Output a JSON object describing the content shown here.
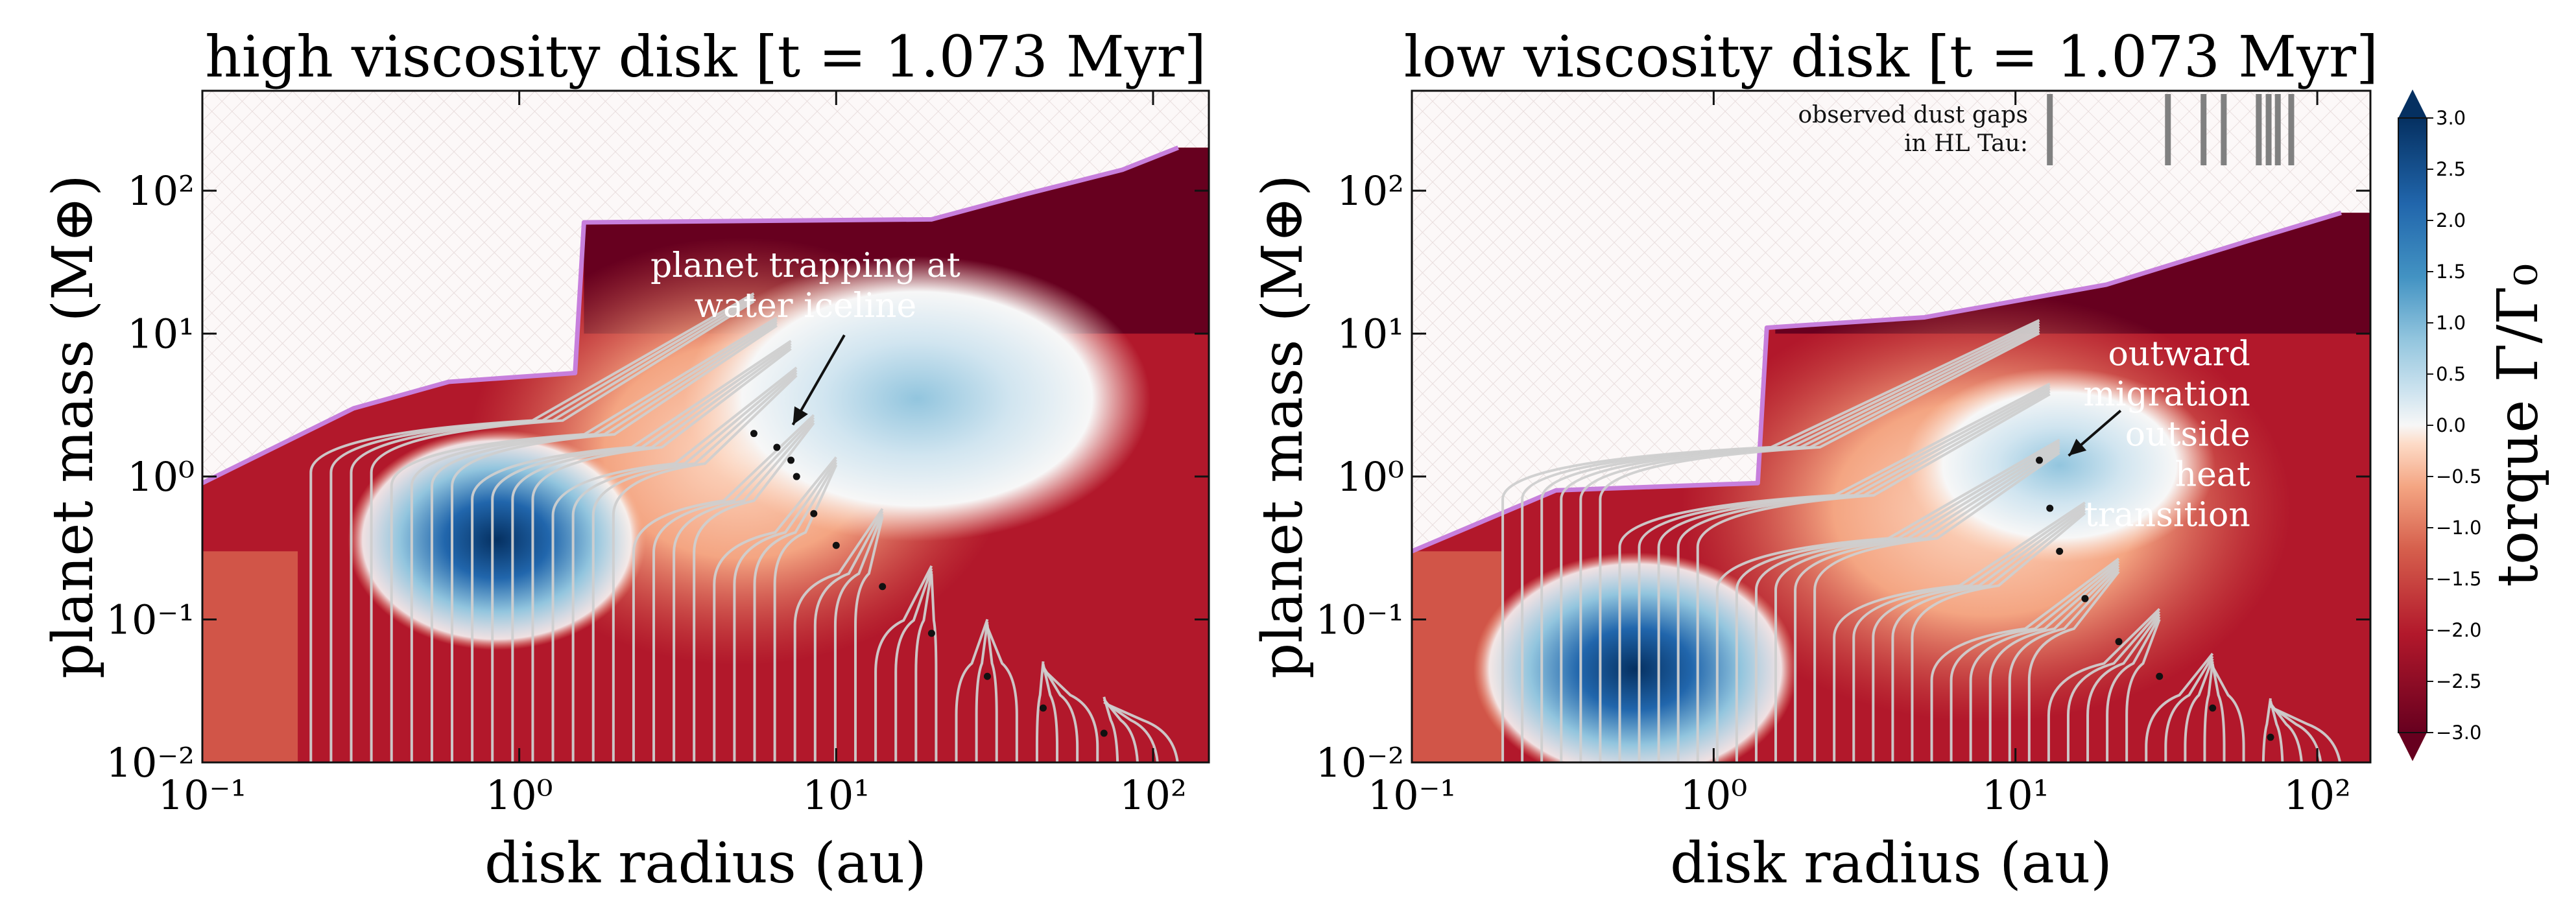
{
  "colors": {
    "deep_red": "#67001f",
    "red": "#b2182b",
    "light_red": "#d6604d",
    "peach": "#f4a582",
    "pale": "#fddbc7",
    "white": "#f7f7f7",
    "pale_blue": "#d1e5f0",
    "light_blue": "#92c5de",
    "blue": "#4393c3",
    "dark_blue": "#2166ac",
    "deep_blue": "#053061",
    "boundary": "#c77fdc",
    "tracks": "#cfcfcf",
    "dots": "#111111"
  },
  "chart_data": [
    {
      "type": "contour",
      "title": "high viscosity disk [t = 1.073 Myr]",
      "xlabel": "disk radius (au)",
      "ylabel": "planet mass (M⊕)",
      "xscale": "log",
      "yscale": "log",
      "xlim": [
        0.1,
        150
      ],
      "ylim": [
        0.01,
        500
      ],
      "x_ticks": [
        {
          "value": 0.1,
          "label": "10⁻¹"
        },
        {
          "value": 1,
          "label": "10⁰"
        },
        {
          "value": 10,
          "label": "10¹"
        },
        {
          "value": 100,
          "label": "10²"
        }
      ],
      "y_ticks": [
        {
          "value": 0.01,
          "label": "10⁻²"
        },
        {
          "value": 0.1,
          "label": "10⁻¹"
        },
        {
          "value": 1,
          "label": "10⁰"
        },
        {
          "value": 10,
          "label": "10¹"
        },
        {
          "value": 100,
          "label": "10²"
        }
      ],
      "annotations": [
        {
          "lines": [
            "planet trapping at",
            "water iceline"
          ],
          "x": 8.0,
          "y": 25,
          "arrow_to": [
            7.3,
            2.3
          ]
        }
      ],
      "boundary": [
        [
          0.1,
          0.9
        ],
        [
          0.3,
          3.0
        ],
        [
          0.6,
          4.6
        ],
        [
          1.5,
          5.3
        ],
        [
          1.6,
          60
        ],
        [
          20,
          63
        ],
        [
          40,
          95
        ],
        [
          80,
          140
        ],
        [
          120,
          200
        ]
      ],
      "blue_regions": [
        {
          "x": 0.8,
          "y": 0.36,
          "level": -2.5
        },
        {
          "x": 20,
          "y": 4.2,
          "level": 0.5
        }
      ],
      "tracks": {
        "count": 44,
        "r0_range": [
          0.22,
          120
        ],
        "end_points": [
          [
            5.5,
            2.0
          ],
          [
            6.5,
            1.6
          ],
          [
            7.2,
            1.3
          ],
          [
            7.5,
            1.0
          ],
          [
            8.5,
            0.55
          ],
          [
            10,
            0.33
          ],
          [
            14,
            0.17
          ],
          [
            20,
            0.08
          ],
          [
            30,
            0.04
          ],
          [
            45,
            0.024
          ],
          [
            70,
            0.016
          ]
        ]
      }
    },
    {
      "type": "contour",
      "title": "low viscosity disk [t = 1.073 Myr]",
      "xlabel": "disk radius (au)",
      "ylabel": "planet mass (M⊕)",
      "xscale": "log",
      "yscale": "log",
      "xlim": [
        0.1,
        150
      ],
      "ylim": [
        0.01,
        500
      ],
      "x_ticks": [
        {
          "value": 0.1,
          "label": "10⁻¹"
        },
        {
          "value": 1,
          "label": "10⁰"
        },
        {
          "value": 10,
          "label": "10¹"
        },
        {
          "value": 100,
          "label": "10²"
        }
      ],
      "y_ticks": [
        {
          "value": 0.01,
          "label": "10⁻²"
        },
        {
          "value": 0.1,
          "label": "10⁻¹"
        },
        {
          "value": 1,
          "label": "10⁰"
        },
        {
          "value": 10,
          "label": "10¹"
        },
        {
          "value": 100,
          "label": "10²"
        }
      ],
      "annotations": [
        {
          "lines": [
            "outward",
            "migration",
            "outside",
            "heat",
            "transition"
          ],
          "x": 60,
          "y": 6,
          "arrow_to": [
            15,
            1.4
          ]
        },
        {
          "lines": [
            "observed dust gaps",
            "in HL Tau:"
          ],
          "x": 11,
          "y": 300
        }
      ],
      "hl_tau_gaps_au": [
        13,
        32,
        42,
        49,
        64,
        69,
        74,
        82
      ],
      "boundary": [
        [
          0.1,
          0.3
        ],
        [
          0.3,
          0.8
        ],
        [
          1.4,
          0.9
        ],
        [
          1.5,
          11
        ],
        [
          5,
          13
        ],
        [
          20,
          22
        ],
        [
          60,
          45
        ],
        [
          120,
          70
        ]
      ],
      "blue_regions": [
        {
          "x": 0.55,
          "y": 0.045,
          "level": -2.5
        },
        {
          "x": 15,
          "y": 1.2,
          "level": 0.3
        }
      ],
      "tracks": {
        "count": 44,
        "r0_range": [
          0.2,
          120
        ],
        "end_points": [
          [
            12,
            1.3
          ],
          [
            13,
            0.6
          ],
          [
            14,
            0.3
          ],
          [
            17,
            0.14
          ],
          [
            22,
            0.07
          ],
          [
            30,
            0.04
          ],
          [
            45,
            0.024
          ],
          [
            70,
            0.015
          ]
        ]
      }
    }
  ],
  "colorbar": {
    "label": "torque Γ/Γ₀",
    "range": [
      -3.0,
      3.0
    ],
    "ticks": [
      "−3.0",
      "−2.5",
      "−2.0",
      "−1.5",
      "−1.0",
      "−0.5",
      "0.0",
      "0.5",
      "1.0",
      "1.5",
      "2.0",
      "2.5",
      "3.0"
    ]
  }
}
